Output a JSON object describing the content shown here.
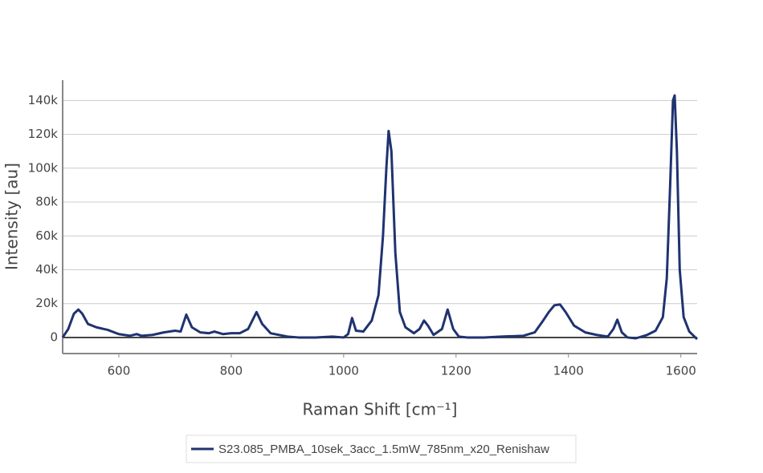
{
  "chart_data": {
    "type": "line",
    "x_label": "Raman Shift [cm⁻¹]",
    "y_label": "Intensity [au]",
    "x": [
      500,
      510,
      520,
      528,
      535,
      545,
      560,
      580,
      600,
      620,
      632,
      640,
      660,
      680,
      700,
      710,
      720,
      730,
      745,
      760,
      770,
      785,
      800,
      815,
      830,
      845,
      855,
      870,
      900,
      920,
      950,
      980,
      1000,
      1008,
      1015,
      1022,
      1035,
      1050,
      1062,
      1070,
      1076,
      1080,
      1085,
      1092,
      1100,
      1110,
      1125,
      1135,
      1143,
      1150,
      1160,
      1175,
      1185,
      1195,
      1205,
      1220,
      1250,
      1280,
      1320,
      1340,
      1355,
      1365,
      1375,
      1385,
      1395,
      1410,
      1430,
      1450,
      1470,
      1480,
      1487,
      1495,
      1505,
      1520,
      1540,
      1555,
      1568,
      1575,
      1581,
      1586,
      1589,
      1593,
      1598,
      1605,
      1615,
      1629
    ],
    "series": [
      {
        "name": "S23.085_PMBA_10sek_3acc_1.5mW_785nm_x20_Renishaw",
        "color": "#1f3370",
        "values": [
          0,
          5000,
          14000,
          16500,
          14000,
          8000,
          6000,
          4500,
          2000,
          1000,
          2000,
          1000,
          1500,
          3000,
          4000,
          3500,
          13500,
          6000,
          3000,
          2500,
          3500,
          2000,
          2500,
          2500,
          5000,
          15000,
          8000,
          2500,
          500,
          0,
          0,
          500,
          0,
          2000,
          11500,
          4000,
          3500,
          10000,
          25000,
          60000,
          100000,
          122000,
          110000,
          50000,
          15000,
          6000,
          2500,
          5000,
          10000,
          7000,
          1500,
          5000,
          16500,
          5000,
          500,
          0,
          0,
          500,
          1000,
          3000,
          10000,
          15000,
          19000,
          19500,
          15000,
          7000,
          3000,
          1500,
          500,
          5000,
          10500,
          3000,
          0,
          -500,
          1500,
          4000,
          12000,
          35000,
          90000,
          140000,
          143000,
          110000,
          40000,
          12000,
          3500,
          -1000
        ]
      }
    ],
    "xlim": [
      500,
      1629
    ],
    "ylim": [
      -9500,
      152000
    ],
    "xticks": [
      600,
      800,
      1000,
      1200,
      1400,
      1600
    ],
    "yticks": [
      0,
      {
        "value": 20000,
        "label": "20k"
      },
      {
        "value": 40000,
        "label": "40k"
      },
      {
        "value": 60000,
        "label": "60k"
      },
      {
        "value": 80000,
        "label": "80k"
      },
      {
        "value": 100000,
        "label": "100k"
      },
      {
        "value": 120000,
        "label": "120k"
      },
      {
        "value": 140000,
        "label": "140k"
      }
    ],
    "grid": true
  }
}
